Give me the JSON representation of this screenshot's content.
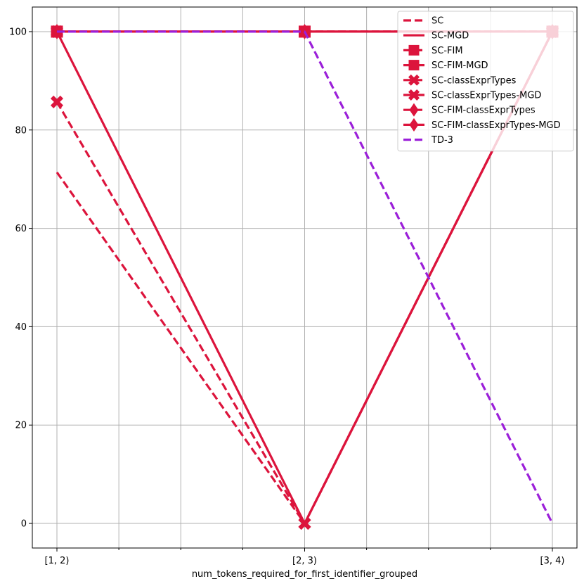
{
  "chart_data": {
    "type": "line",
    "title": "",
    "xlabel": "num_tokens_required_for_first_identifier_grouped",
    "ylabel": "",
    "categories": [
      "[1, 2)",
      "[2, 3)",
      "[3, 4)"
    ],
    "yticks": [
      0,
      20,
      40,
      60,
      80,
      100
    ],
    "ylim": [
      -5,
      105
    ],
    "grid": true,
    "legend_position": "top-right",
    "series": [
      {
        "name": "SC",
        "values": [
          71.4,
          0,
          100
        ],
        "color": "#dc143c",
        "dash": "dashed",
        "marker": "none"
      },
      {
        "name": "SC-MGD",
        "values": [
          100,
          100,
          100
        ],
        "color": "#dc143c",
        "dash": "solid",
        "marker": "none"
      },
      {
        "name": "SC-FIM",
        "values": [
          100,
          100,
          100
        ],
        "color": "#dc143c",
        "dash": "dashed",
        "marker": "square"
      },
      {
        "name": "SC-FIM-MGD",
        "values": [
          100,
          100,
          100
        ],
        "color": "#dc143c",
        "dash": "solid",
        "marker": "square"
      },
      {
        "name": "SC-classExprTypes",
        "values": [
          85.7,
          0,
          100
        ],
        "color": "#dc143c",
        "dash": "dashed",
        "marker": "x"
      },
      {
        "name": "SC-classExprTypes-MGD",
        "values": [
          100,
          0,
          100
        ],
        "color": "#dc143c",
        "dash": "solid",
        "marker": "x"
      },
      {
        "name": "SC-FIM-classExprTypes",
        "values": [
          100,
          100,
          100
        ],
        "color": "#dc143c",
        "dash": "dashed",
        "marker": "diamond"
      },
      {
        "name": "SC-FIM-classExprTypes-MGD",
        "values": [
          100,
          100,
          100
        ],
        "color": "#dc143c",
        "dash": "solid",
        "marker": "diamond"
      },
      {
        "name": "TD-3",
        "values": [
          100,
          100,
          0
        ],
        "color": "#9b1fd9",
        "dash": "dashed",
        "marker": "none"
      }
    ]
  }
}
